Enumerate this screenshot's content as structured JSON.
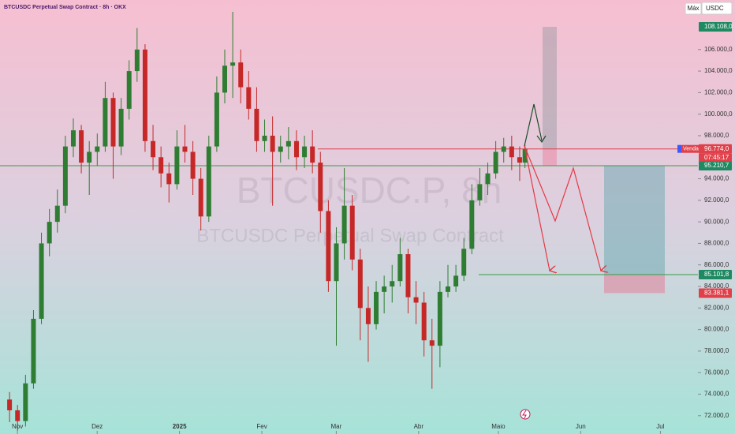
{
  "chart_data": {
    "type": "candlestick",
    "title": "BTCUSDC Perpetual Swap Contract · 8h · OKX",
    "watermark": "BTCUSDC.P, 8h",
    "watermark_subtitle": "BTCUSDC Perpetual Swap Contract",
    "button_max": "Máx",
    "currency": "USDC",
    "countdown": "07:45:17",
    "order_label": "Venda",
    "up_color": "#2e7d32",
    "down_color": "#c62828",
    "x": [
      0,
      3,
      6,
      9,
      12,
      15,
      18,
      21,
      24,
      27,
      30,
      33,
      36,
      39,
      42,
      45,
      48,
      51,
      54,
      57,
      60,
      63,
      66,
      69,
      72,
      75,
      78,
      81,
      84,
      87,
      90,
      93,
      96,
      99,
      102,
      105,
      108,
      111,
      114,
      117,
      120,
      123,
      126,
      129,
      132,
      135,
      138,
      141,
      144,
      147,
      150,
      153,
      156,
      159,
      162,
      165,
      168,
      171,
      174,
      177,
      180,
      183,
      186,
      189,
      192,
      194
    ],
    "open": [
      73500,
      72500,
      71500,
      75000,
      81000,
      88000,
      90000,
      91500,
      97000,
      98500,
      95500,
      96500,
      97000,
      101500,
      97000,
      100500,
      104000,
      106000,
      97500,
      96000,
      94500,
      93500,
      97000,
      96500,
      94000,
      90500,
      97000,
      102000,
      104500,
      104800,
      102500,
      100500,
      97500,
      98000,
      96500,
      97000,
      97500,
      96000,
      97000,
      95500,
      91000,
      84500,
      88000,
      91500,
      86500,
      82000,
      80500,
      83500,
      84000,
      84500,
      87000,
      83000,
      82500,
      79000,
      78500,
      83500,
      84000,
      85000,
      87500,
      92000,
      93500,
      94500,
      96500,
      97000,
      96000,
      95500
    ],
    "high": [
      74200,
      73000,
      75800,
      81800,
      89000,
      91200,
      93000,
      98000,
      99600,
      99000,
      97500,
      98200,
      103000,
      102000,
      101500,
      105000,
      108000,
      106500,
      99000,
      97000,
      95500,
      98500,
      99000,
      97500,
      95000,
      98000,
      103500,
      106000,
      109500,
      106000,
      104000,
      102500,
      99500,
      99800,
      98000,
      98800,
      98500,
      98000,
      98500,
      96500,
      92000,
      89500,
      95000,
      92500,
      87500,
      84000,
      84500,
      85000,
      86000,
      88500,
      87500,
      84500,
      83500,
      81000,
      84500,
      86000,
      86000,
      88500,
      93500,
      95000,
      95500,
      97500,
      97800,
      98000,
      97000,
      97200
    ],
    "low": [
      71400,
      70600,
      71000,
      74500,
      80500,
      86800,
      89000,
      90800,
      96000,
      94500,
      92500,
      95200,
      96500,
      94000,
      96200,
      99500,
      103000,
      96500,
      94800,
      93200,
      91800,
      93000,
      95500,
      92500,
      89200,
      90000,
      96500,
      101000,
      101500,
      101000,
      99500,
      96500,
      96500,
      91500,
      95500,
      95800,
      94800,
      95000,
      94500,
      89000,
      83500,
      78500,
      86500,
      85500,
      79000,
      77000,
      80000,
      81500,
      82500,
      84000,
      81500,
      80500,
      77500,
      74500,
      76500,
      83000,
      83500,
      84500,
      87000,
      91500,
      92500,
      94000,
      95500,
      94800,
      93800,
      95000
    ],
    "close": [
      72500,
      71500,
      75000,
      81000,
      88000,
      90000,
      91500,
      97000,
      98500,
      95500,
      96500,
      97000,
      101500,
      97000,
      100500,
      104000,
      106000,
      97500,
      96000,
      94500,
      93500,
      97000,
      96500,
      94000,
      90500,
      97000,
      102000,
      104500,
      104800,
      102500,
      100500,
      97500,
      98000,
      96500,
      97000,
      97500,
      96000,
      97000,
      95500,
      91000,
      84500,
      88000,
      91500,
      86500,
      82000,
      80500,
      83500,
      84000,
      84500,
      87000,
      83000,
      82500,
      79000,
      78500,
      83500,
      84000,
      85000,
      87500,
      92000,
      93500,
      94500,
      96500,
      97000,
      96000,
      95500,
      96774
    ],
    "xlim": [
      -3.6,
      259.1
    ],
    "xticks": [
      {
        "value": 0,
        "label": "Nov"
      },
      {
        "value": 30,
        "label": "Dez"
      },
      {
        "value": 61,
        "label": "2025"
      },
      {
        "value": 92,
        "label": "Fev"
      },
      {
        "value": 120,
        "label": "Mar"
      },
      {
        "value": 151,
        "label": "Abr"
      },
      {
        "value": 181,
        "label": "Maio"
      },
      {
        "value": 212,
        "label": "Jun"
      },
      {
        "value": 242,
        "label": "Jul"
      }
    ],
    "ylim": [
      70300,
      110600
    ],
    "yticks": [
      {
        "value": 72000,
        "label": "72.000,0"
      },
      {
        "value": 74000,
        "label": "74.000,0"
      },
      {
        "value": 76000,
        "label": "76.000,0"
      },
      {
        "value": 78000,
        "label": "78.000,0"
      },
      {
        "value": 80000,
        "label": "80.000,0"
      },
      {
        "value": 82000,
        "label": "82.000,0"
      },
      {
        "value": 84000,
        "label": "84.000,0"
      },
      {
        "value": 86000,
        "label": "86.000,0"
      },
      {
        "value": 88000,
        "label": "88.000,0"
      },
      {
        "value": 90000,
        "label": "90.000,0"
      },
      {
        "value": 92000,
        "label": "92.000,0"
      },
      {
        "value": 94000,
        "label": "94.000,0"
      },
      {
        "value": 98000,
        "label": "98.000,0"
      },
      {
        "value": 100000,
        "label": "100.000,0"
      },
      {
        "value": 102000,
        "label": "102.000,0"
      },
      {
        "value": 104000,
        "label": "104.000,0"
      },
      {
        "value": 106000,
        "label": "106.000,0"
      }
    ],
    "price_levels": [
      {
        "value": 108108,
        "label": "108.108,0",
        "color": "#1f8a62"
      },
      {
        "value": 96774,
        "label": "96.774,0",
        "color": "#e0404a"
      },
      {
        "value": 95210.7,
        "label": "95.210,7",
        "color": "#1f8a62"
      },
      {
        "value": 85101.8,
        "label": "85.101,8",
        "color": "#1f8a62"
      },
      {
        "value": 83381.1,
        "label": "83.381,1",
        "color": "#e0404a"
      }
    ]
  }
}
